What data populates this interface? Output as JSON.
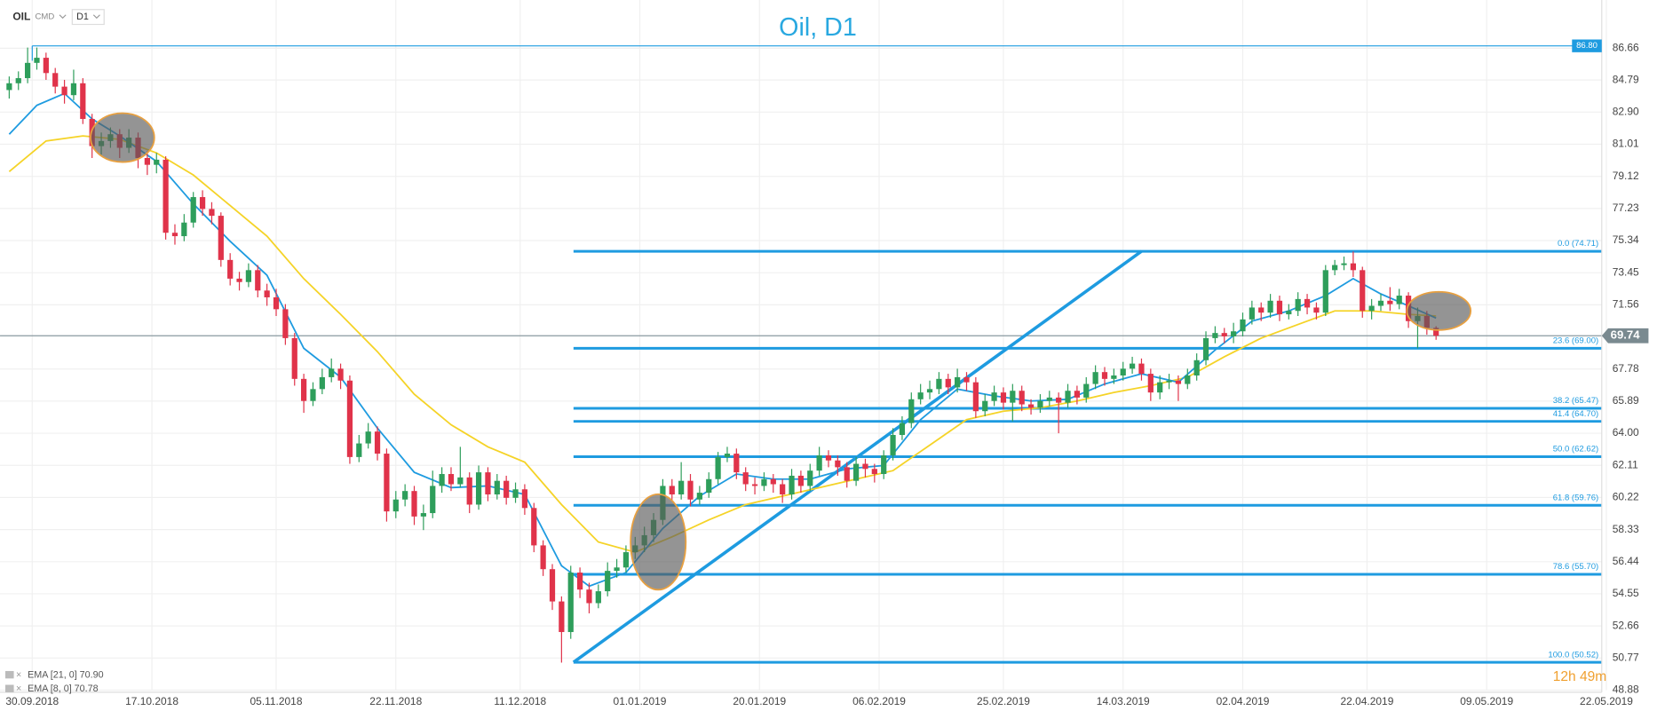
{
  "chart_data": {
    "type": "candlestick",
    "title": "Oil, D1",
    "toolbar": {
      "symbol": "OIL",
      "market": "CMD",
      "interval": "D1"
    },
    "timer": "12h 49m",
    "xlim": [
      -1,
      173
    ],
    "ylim": [
      48.88,
      89.5
    ],
    "yticks": [
      48.88,
      50.77,
      52.66,
      54.55,
      56.44,
      58.33,
      60.22,
      62.11,
      {
        "value": 64,
        "label": "64.00"
      },
      65.89,
      67.78,
      71.56,
      73.45,
      75.34,
      77.23,
      79.12,
      81.01,
      {
        "value": 82.9,
        "label": "82.90"
      },
      84.79,
      86.66
    ],
    "xticks": [
      {
        "value": 2.5,
        "label": "30.09.2018"
      },
      {
        "value": 15.5,
        "label": "17.10.2018"
      },
      {
        "value": 29,
        "label": "05.11.2018"
      },
      {
        "value": 42,
        "label": "22.11.2018"
      },
      {
        "value": 55.5,
        "label": "11.12.2018"
      },
      {
        "value": 68.5,
        "label": "01.01.2019"
      },
      {
        "value": 81.5,
        "label": "20.01.2019"
      },
      {
        "value": 94.5,
        "label": "06.02.2019"
      },
      {
        "value": 108,
        "label": "25.02.2019"
      },
      {
        "value": 121,
        "label": "14.03.2019"
      },
      {
        "value": 134,
        "label": "02.04.2019"
      },
      {
        "value": 147.5,
        "label": "22.04.2019"
      },
      {
        "value": 160.5,
        "label": "09.05.2019"
      },
      {
        "value": 173.5,
        "label": "22.05.2019"
      }
    ],
    "grid": true,
    "up_color": "#2e9e5b",
    "down_color": "#e0334a",
    "open": [
      84.2,
      84.6,
      84.9,
      85.8,
      86.1,
      85.2,
      84.4,
      83.9,
      84.6,
      82.5,
      80.9,
      81.2,
      81.6,
      80.8,
      81.4,
      80.2,
      79.8,
      80.1,
      75.8,
      75.6,
      76.4,
      77.9,
      77.2,
      76.8,
      74.2,
      73.1,
      72.9,
      73.6,
      72.4,
      72.0,
      71.3,
      69.6,
      67.2,
      65.9,
      66.6,
      67.3,
      67.8,
      67.1,
      62.6,
      63.4,
      64.1,
      62.8,
      59.4,
      60.1,
      60.6,
      59.1,
      59.3,
      60.9,
      61.6,
      61.0,
      61.4,
      59.8,
      61.7,
      60.4,
      61.2,
      60.2,
      60.7,
      59.6,
      57.4,
      56.0,
      54.1,
      52.3,
      55.8,
      54.8,
      54.0,
      54.7,
      55.9,
      56.1,
      57.0,
      57.4,
      58.0,
      58.9,
      60.9,
      60.4,
      61.2,
      60.1,
      60.5,
      61.3,
      62.6,
      62.8,
      61.7,
      61.0,
      60.9,
      61.3,
      61.0,
      60.4,
      61.5,
      60.9,
      61.8,
      62.7,
      62.4,
      62.0,
      61.2,
      62.2,
      61.9,
      61.6,
      62.7,
      63.9,
      64.6,
      66.0,
      66.4,
      66.6,
      67.2,
      66.7,
      67.3,
      67.0,
      65.3,
      65.9,
      66.4,
      65.8,
      66.5,
      65.7,
      65.5,
      65.9,
      66.1,
      65.8,
      66.5,
      66.1,
      66.9,
      67.6,
      67.2,
      67.4,
      67.8,
      68.1,
      67.5,
      66.4,
      67.0,
      67.1,
      66.9,
      67.4,
      68.3,
      69.6,
      69.9,
      69.7,
      70.0,
      70.7,
      71.4,
      71.1,
      71.8,
      71.0,
      71.2,
      71.9,
      71.4,
      71.1,
      73.6,
      73.9,
      74.0,
      73.6,
      71.2,
      71.5,
      71.8,
      71.6,
      72.1,
      70.6,
      70.9,
      70.2
    ],
    "high": [
      85.0,
      85.3,
      86.7,
      86.7,
      86.4,
      85.5,
      84.8,
      85.4,
      84.9,
      82.8,
      81.7,
      82.0,
      81.9,
      81.9,
      81.7,
      80.6,
      80.5,
      80.3,
      76.3,
      76.9,
      78.2,
      78.3,
      77.6,
      77.0,
      74.6,
      73.5,
      74.0,
      73.9,
      72.8,
      72.5,
      71.6,
      69.9,
      67.5,
      67.0,
      67.8,
      68.4,
      68.1,
      67.4,
      63.9,
      64.6,
      64.4,
      63.1,
      60.6,
      61.0,
      60.9,
      59.8,
      61.8,
      62.0,
      62.0,
      63.2,
      61.7,
      62.1,
      62.0,
      61.6,
      61.5,
      61.1,
      61.0,
      59.9,
      57.7,
      56.3,
      54.4,
      56.2,
      56.1,
      55.2,
      55.1,
      56.4,
      56.6,
      57.4,
      57.9,
      58.5,
      59.3,
      61.3,
      61.3,
      62.3,
      61.6,
      60.9,
      61.7,
      62.9,
      63.2,
      63.1,
      62.0,
      61.4,
      61.7,
      61.6,
      61.3,
      61.9,
      61.8,
      62.2,
      63.2,
      63.0,
      62.7,
      62.3,
      62.6,
      62.5,
      62.2,
      63.0,
      64.3,
      65.0,
      66.4,
      66.9,
      67.1,
      67.6,
      67.5,
      67.8,
      67.6,
      67.3,
      66.3,
      66.8,
      66.7,
      66.9,
      66.8,
      66.0,
      66.3,
      66.5,
      66.4,
      66.9,
      66.8,
      67.3,
      68.0,
      67.9,
      67.8,
      68.2,
      68.5,
      68.4,
      67.8,
      67.4,
      67.5,
      67.4,
      67.8,
      68.7,
      70.0,
      70.3,
      70.2,
      70.5,
      71.1,
      71.8,
      71.7,
      72.2,
      72.1,
      71.6,
      72.3,
      72.2,
      71.7,
      73.9,
      74.2,
      74.4,
      74.7,
      73.8,
      71.9,
      72.2,
      72.6,
      72.5,
      72.3,
      71.4,
      71.2,
      70.3
    ],
    "low": [
      83.7,
      84.2,
      84.6,
      85.4,
      84.8,
      84.0,
      83.4,
      83.6,
      82.2,
      80.2,
      80.4,
      80.8,
      80.2,
      80.5,
      79.6,
      79.2,
      79.3,
      75.4,
      75.1,
      75.3,
      76.1,
      76.8,
      76.3,
      73.8,
      72.7,
      72.4,
      72.6,
      72.0,
      71.5,
      70.9,
      69.2,
      66.8,
      65.2,
      65.6,
      66.3,
      67.0,
      66.6,
      62.2,
      62.3,
      63.1,
      62.4,
      58.8,
      59.0,
      59.7,
      58.6,
      58.3,
      59.0,
      60.5,
      60.6,
      60.8,
      59.3,
      59.5,
      60.0,
      60.1,
      59.8,
      59.9,
      59.2,
      57.0,
      55.6,
      53.6,
      50.5,
      51.9,
      54.3,
      53.4,
      53.7,
      54.4,
      55.5,
      55.8,
      56.6,
      57.0,
      57.6,
      58.6,
      60.0,
      60.1,
      59.7,
      59.8,
      60.2,
      61.0,
      62.3,
      61.3,
      60.6,
      60.4,
      60.6,
      60.5,
      59.9,
      60.1,
      60.5,
      60.6,
      61.5,
      62.0,
      61.5,
      60.8,
      60.9,
      61.4,
      61.1,
      61.3,
      62.4,
      63.6,
      64.3,
      65.7,
      66.0,
      66.3,
      66.3,
      66.4,
      66.5,
      64.9,
      65.0,
      65.6,
      65.4,
      64.7,
      65.3,
      65.1,
      65.2,
      65.6,
      64.0,
      65.5,
      65.7,
      65.8,
      66.6,
      66.8,
      66.9,
      67.1,
      67.5,
      67.1,
      65.9,
      66.0,
      66.6,
      65.9,
      66.6,
      67.1,
      68.0,
      69.3,
      69.3,
      69.3,
      69.7,
      70.4,
      70.6,
      70.8,
      70.6,
      70.7,
      70.9,
      71.0,
      70.7,
      70.9,
      73.3,
      73.6,
      73.2,
      70.8,
      70.7,
      71.2,
      71.2,
      71.3,
      70.2,
      69.0,
      69.8,
      69.5
    ],
    "close": [
      84.6,
      84.9,
      85.8,
      86.1,
      85.2,
      84.4,
      83.9,
      84.6,
      82.5,
      80.9,
      81.2,
      81.6,
      80.8,
      81.4,
      80.2,
      79.8,
      80.1,
      75.8,
      75.6,
      76.4,
      77.9,
      77.2,
      76.8,
      74.2,
      73.1,
      72.9,
      73.6,
      72.4,
      72.0,
      71.3,
      69.6,
      67.2,
      65.9,
      66.6,
      67.3,
      67.8,
      67.1,
      62.6,
      63.4,
      64.1,
      62.8,
      59.4,
      60.1,
      60.6,
      59.1,
      59.3,
      60.9,
      61.6,
      61.0,
      61.4,
      59.8,
      61.7,
      60.4,
      61.2,
      60.2,
      60.7,
      59.6,
      57.4,
      56.0,
      54.1,
      52.3,
      55.8,
      54.8,
      54.0,
      54.7,
      55.9,
      56.1,
      57.0,
      57.4,
      58.0,
      58.9,
      60.9,
      60.4,
      61.2,
      60.1,
      60.5,
      61.3,
      62.6,
      62.8,
      61.7,
      61.0,
      60.9,
      61.3,
      61.0,
      60.4,
      61.5,
      60.9,
      61.8,
      62.7,
      62.4,
      62.0,
      61.2,
      62.2,
      61.9,
      61.6,
      62.7,
      63.9,
      64.6,
      66.0,
      66.4,
      66.6,
      67.2,
      66.7,
      67.3,
      67.0,
      65.3,
      65.9,
      66.4,
      65.8,
      66.5,
      65.7,
      65.5,
      65.9,
      66.1,
      65.8,
      66.5,
      66.1,
      66.9,
      67.6,
      67.2,
      67.4,
      67.8,
      68.1,
      67.5,
      66.4,
      67.0,
      67.1,
      66.9,
      67.4,
      68.3,
      69.6,
      69.9,
      69.7,
      70.0,
      70.7,
      71.4,
      71.1,
      71.8,
      71.0,
      71.2,
      71.9,
      71.4,
      71.1,
      73.6,
      73.9,
      74.0,
      73.6,
      71.2,
      71.5,
      71.8,
      71.6,
      72.1,
      70.6,
      70.9,
      70.2,
      69.74
    ],
    "series": [
      {
        "name": "EMA [21, 0] 70.90",
        "color": "#f5d327",
        "x": [
          0,
          4,
          8,
          12,
          16,
          20,
          24,
          28,
          32,
          36,
          40,
          44,
          48,
          52,
          56,
          60,
          64,
          68,
          72,
          76,
          80,
          84,
          88,
          92,
          96,
          100,
          104,
          108,
          112,
          116,
          120,
          124,
          128,
          132,
          136,
          140,
          144,
          148,
          152,
          155
        ],
        "values": [
          79.4,
          81.2,
          81.5,
          81.3,
          80.5,
          79.2,
          77.4,
          75.6,
          73.1,
          71.0,
          68.8,
          66.3,
          64.5,
          63.2,
          62.3,
          59.8,
          57.6,
          57.0,
          57.9,
          58.9,
          59.8,
          60.3,
          60.8,
          61.3,
          61.8,
          63.3,
          64.8,
          65.3,
          65.5,
          65.9,
          66.4,
          66.8,
          67.3,
          68.5,
          69.6,
          70.4,
          71.2,
          71.2,
          71.0,
          70.9
        ]
      },
      {
        "name": "EMA [8, 0] 70.78",
        "color": "#1e9be0",
        "x": [
          0,
          3,
          6,
          9,
          12,
          16,
          20,
          24,
          28,
          32,
          36,
          40,
          44,
          48,
          52,
          56,
          60,
          63,
          67,
          71,
          75,
          79,
          83,
          87,
          91,
          95,
          99,
          103,
          107,
          111,
          115,
          119,
          123,
          127,
          131,
          135,
          139,
          143,
          146,
          149,
          152,
          155
        ],
        "values": [
          81.6,
          83.3,
          84.0,
          82.5,
          81.5,
          80.0,
          77.5,
          75.3,
          73.3,
          69.0,
          67.3,
          64.3,
          61.7,
          60.8,
          60.9,
          60.4,
          56.2,
          55.0,
          55.8,
          58.4,
          60.3,
          61.6,
          61.3,
          61.3,
          61.9,
          62.1,
          64.8,
          66.6,
          66.2,
          65.9,
          66.0,
          66.9,
          67.5,
          67.0,
          68.9,
          70.6,
          71.2,
          72.1,
          73.1,
          72.2,
          71.5,
          70.78
        ]
      }
    ],
    "price_line": {
      "value": 86.8,
      "label": "86.80"
    },
    "current_price": {
      "value": 69.74,
      "label": "69.74"
    },
    "fibonacci": {
      "start": 61.3,
      "levels": [
        {
          "value": 74.71,
          "label": "0.0 (74.71)"
        },
        {
          "value": 69.0,
          "label": "23.6 (69.00)"
        },
        {
          "value": 65.47,
          "label": "38.2 (65.47)"
        },
        {
          "value": 64.7,
          "label": "41.4 (64.70)"
        },
        {
          "value": 62.62,
          "label": "50.0 (62.62)"
        },
        {
          "value": 59.76,
          "label": "61.8 (59.76)"
        },
        {
          "value": 55.7,
          "label": "78.6 (55.70)"
        },
        {
          "value": 50.52,
          "label": "100.0 (50.52)"
        }
      ]
    },
    "trendline": {
      "x": [
        61.3,
        123
      ],
      "values": [
        50.52,
        74.71
      ]
    },
    "highlights": {
      "x": [
        12.3,
        70.5,
        155.3
      ],
      "values": [
        81.4,
        57.6,
        71.2
      ]
    }
  }
}
